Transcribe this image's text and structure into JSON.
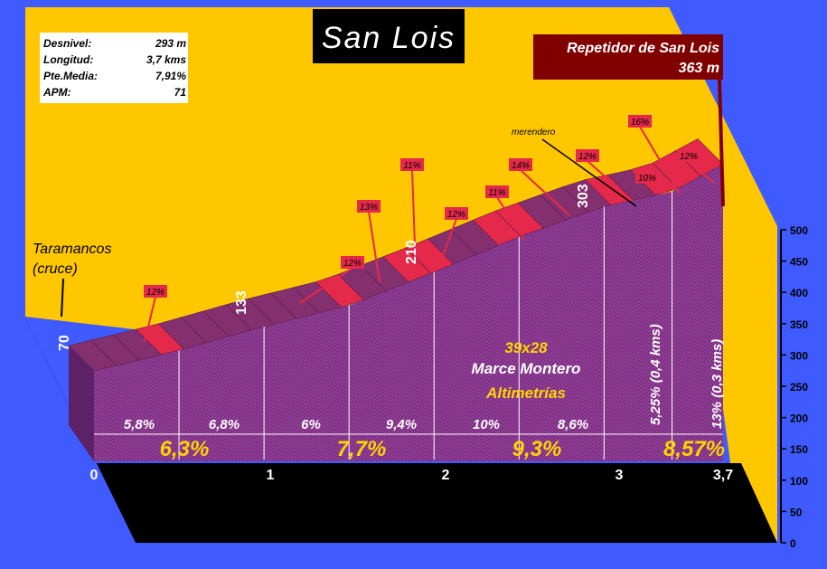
{
  "chart_data": {
    "type": "area",
    "title": "San Lois",
    "summit": {
      "name": "Repetidor de San Lois",
      "altitude": "363 m"
    },
    "stats": [
      {
        "label": "Desnivel:",
        "value": "293 m"
      },
      {
        "label": "Longitud:",
        "value": "3,7 kms"
      },
      {
        "label": "Pte.Media:",
        "value": "7,91%"
      },
      {
        "label": "APM:",
        "value": "71"
      }
    ],
    "start_label": [
      "Taramancos",
      "(cruce)"
    ],
    "x_ticks": [
      "0",
      "1",
      "2",
      "3",
      "3,7"
    ],
    "y_ticks": [
      "0",
      "50",
      "100",
      "150",
      "200",
      "250",
      "300",
      "350",
      "400",
      "450",
      "500"
    ],
    "ylim": [
      0,
      500
    ],
    "altitude_marks": [
      "70",
      "133",
      "210",
      "303"
    ],
    "profile": [
      {
        "km": 0,
        "alt": 70
      },
      {
        "km": 0.5,
        "alt": 99
      },
      {
        "km": 1,
        "alt": 133
      },
      {
        "km": 1.5,
        "alt": 163
      },
      {
        "km": 2,
        "alt": 210
      },
      {
        "km": 2.5,
        "alt": 260
      },
      {
        "km": 3,
        "alt": 303
      },
      {
        "km": 3.4,
        "alt": 324
      },
      {
        "km": 3.7,
        "alt": 363
      }
    ],
    "half_km_gradients": [
      "5,8%",
      "6,8%",
      "6%",
      "9,4%",
      "10%",
      "8,6%"
    ],
    "km_gradients": [
      "6,3%",
      "7,7%",
      "9,3%",
      "8,57%"
    ],
    "final_gradients": [
      "5,25% (0,4 kms)",
      "13% (0,3 kms)"
    ],
    "max_gradients": [
      "12%",
      "12%",
      "13%",
      "11%",
      "12%",
      "11%",
      "14%",
      "12%",
      "16%",
      "10%",
      "12%"
    ],
    "annotation": "merendero",
    "credits": [
      "39x28",
      "Marce Montero",
      "Altimetrías"
    ]
  },
  "colors": {
    "background": "#3f5bff",
    "sky": "#ffc700",
    "wall": "#7d2f83",
    "band_purple": "#84306e",
    "band_red": "#e5294a",
    "floor": "#000000",
    "summit_box": "#800000",
    "credit_yellow": "#ffd400"
  }
}
